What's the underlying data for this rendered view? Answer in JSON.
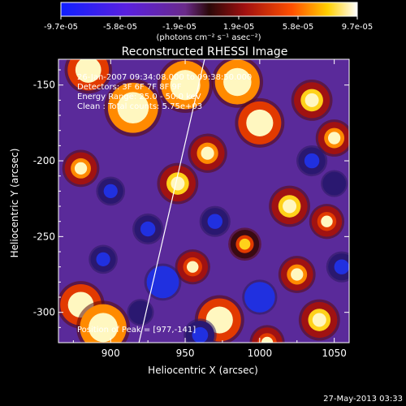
{
  "chart_data": {
    "type": "heatmap",
    "title": "Reconstructed RHESSI Image",
    "xlabel": "Heliocentric X (arcsec)",
    "ylabel": "Heliocentric Y (arcsec)",
    "xlim": [
      865,
      1060
    ],
    "ylim": [
      -320,
      -133
    ],
    "x_ticks": [
      900,
      950,
      1000,
      1050
    ],
    "y_ticks": [
      -150,
      -200,
      -250,
      -300
    ],
    "colorbar": {
      "min": -9.7e-05,
      "max": 9.7e-05,
      "tick_labels": [
        "-9.7e-05",
        "-5.8e-05",
        "-1.9e-05",
        "1.9e-05",
        "5.8e-05",
        "9.7e-05"
      ],
      "units_label": "(photons cm⁻² s⁻¹ asec⁻²)",
      "colormap": "rhessi-blue-purple-red-yellow-white"
    },
    "annotations": [
      "26-Jan-2007 09:34:08.000 to 09:38:50.000",
      "Detectors: 3F 6F 7F 8F 9F",
      "Energy Range: 25.0 - 50.0 keV",
      "Clean : Total counts: 5.75e+03"
    ],
    "peak_label": "Position of Peak = [977,-141]",
    "peak_position": [
      977,
      -141
    ],
    "limb_line": [
      [
        919,
        -320
      ],
      [
        963,
        -133
      ]
    ],
    "grid": false,
    "blobs": [
      {
        "x": 885,
        "y": -140,
        "v": 0.7
      },
      {
        "x": 915,
        "y": -165,
        "v": 0.95
      },
      {
        "x": 950,
        "y": -150,
        "v": 0.9
      },
      {
        "x": 985,
        "y": -148,
        "v": 0.8
      },
      {
        "x": 1000,
        "y": -175,
        "v": 0.75
      },
      {
        "x": 1035,
        "y": -160,
        "v": 0.55
      },
      {
        "x": 1050,
        "y": -185,
        "v": 0.45
      },
      {
        "x": 965,
        "y": -195,
        "v": 0.5
      },
      {
        "x": 880,
        "y": -205,
        "v": 0.45
      },
      {
        "x": 945,
        "y": -215,
        "v": 0.55
      },
      {
        "x": 1020,
        "y": -230,
        "v": 0.55
      },
      {
        "x": 1045,
        "y": -240,
        "v": 0.4
      },
      {
        "x": 990,
        "y": -255,
        "v": 0.35
      },
      {
        "x": 955,
        "y": -270,
        "v": 0.4
      },
      {
        "x": 1025,
        "y": -275,
        "v": 0.45
      },
      {
        "x": 880,
        "y": -295,
        "v": 0.7
      },
      {
        "x": 895,
        "y": -310,
        "v": 0.85
      },
      {
        "x": 973,
        "y": -305,
        "v": 0.75
      },
      {
        "x": 1040,
        "y": -305,
        "v": 0.55
      },
      {
        "x": 1005,
        "y": -320,
        "v": 0.4
      },
      {
        "x": 900,
        "y": -220,
        "v": -0.25
      },
      {
        "x": 925,
        "y": -245,
        "v": -0.3
      },
      {
        "x": 895,
        "y": -265,
        "v": -0.25
      },
      {
        "x": 935,
        "y": -280,
        "v": -0.45
      },
      {
        "x": 970,
        "y": -240,
        "v": -0.3
      },
      {
        "x": 1000,
        "y": -290,
        "v": -0.4
      },
      {
        "x": 1055,
        "y": -270,
        "v": -0.3
      },
      {
        "x": 960,
        "y": -315,
        "v": -0.35
      },
      {
        "x": 1035,
        "y": -200,
        "v": -0.3
      },
      {
        "x": 1050,
        "y": -215,
        "v": -0.2
      },
      {
        "x": 920,
        "y": -300,
        "v": -0.2
      }
    ]
  },
  "footer": {
    "timestamp": "27-May-2013 03:33"
  }
}
